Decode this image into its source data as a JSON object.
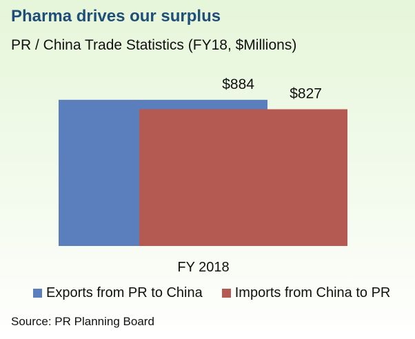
{
  "header": {
    "title": "Pharma drives our surplus",
    "subtitle": "PR / China Trade Statistics (FY18, $Millions)"
  },
  "chart_data": {
    "type": "bar",
    "categories": [
      "FY 2018"
    ],
    "series": [
      {
        "name": "Exports from PR to China",
        "values": [
          884
        ],
        "label": "$884",
        "color": "#5b7fbc"
      },
      {
        "name": "Imports from China to PR",
        "values": [
          827
        ],
        "label": "$827",
        "color": "#b55a52"
      }
    ],
    "ylim": [
      0,
      1000
    ],
    "grid": false,
    "legend_position": "bottom",
    "overlapping_bars": true
  },
  "footer": {
    "source": "Source: PR Planning Board"
  }
}
